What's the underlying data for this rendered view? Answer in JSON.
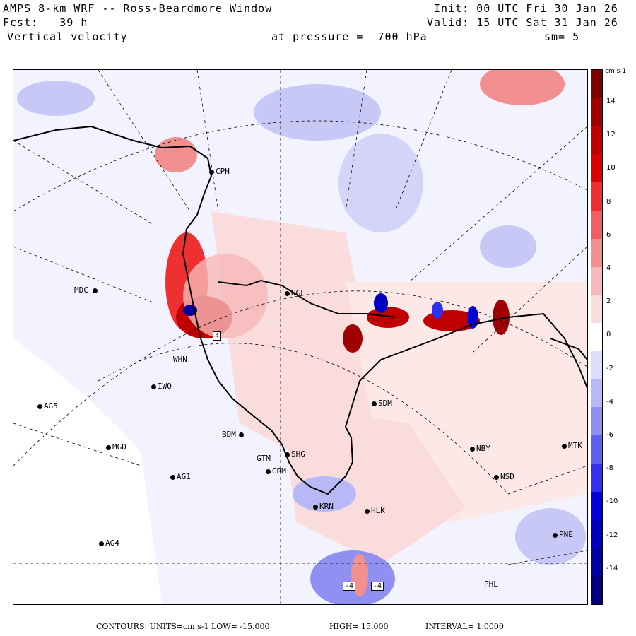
{
  "header": {
    "model_title": "AMPS 8-km WRF -- Ross-Beardmore Window",
    "init": "Init: 00 UTC Fri 30 Jan 26",
    "forecast": "Fcst:   39 h",
    "valid": "Valid: 15 UTC Sat 31 Jan 26",
    "field": "Vertical velocity",
    "pressure": "at pressure =  700 hPa",
    "smoothing": "sm= 5"
  },
  "stations": [
    "CPH",
    "MDC",
    "NGL",
    "WHN",
    "IWO",
    "AG5",
    "SDM",
    "BDM",
    "MGD",
    "SHG",
    "GRM",
    "GTM",
    "AG1",
    "NBY",
    "MTK",
    "NSD",
    "KRN",
    "HLK",
    "AG4",
    "PNE",
    "PHL"
  ],
  "contour_boxes": [
    "4",
    "-4",
    "-4"
  ],
  "colorbar": {
    "units": "cm s-1",
    "labels": [
      "14",
      "12",
      "10",
      "8",
      "6",
      "4",
      "2",
      "0",
      "-2",
      "-4",
      "-6",
      "-8",
      "-10",
      "-12",
      "-14"
    ],
    "colors": [
      "#7f0000",
      "#a00000",
      "#c00000",
      "#dd0000",
      "#ee3030",
      "#f06060",
      "#f29090",
      "#f6b8b8",
      "#fbdcdc",
      "#ffffff",
      "#dcdcfb",
      "#b8b8f6",
      "#9090f2",
      "#6060f0",
      "#3030ee",
      "#0000dd",
      "#0000c0",
      "#0000a0",
      "#00007f"
    ]
  },
  "footer": {
    "contours": "CONTOURS:  UNITS=cm s-1  LOW= -15.000",
    "high": "HIGH=  15.000",
    "interval": "INTERVAL=   1.0000"
  }
}
